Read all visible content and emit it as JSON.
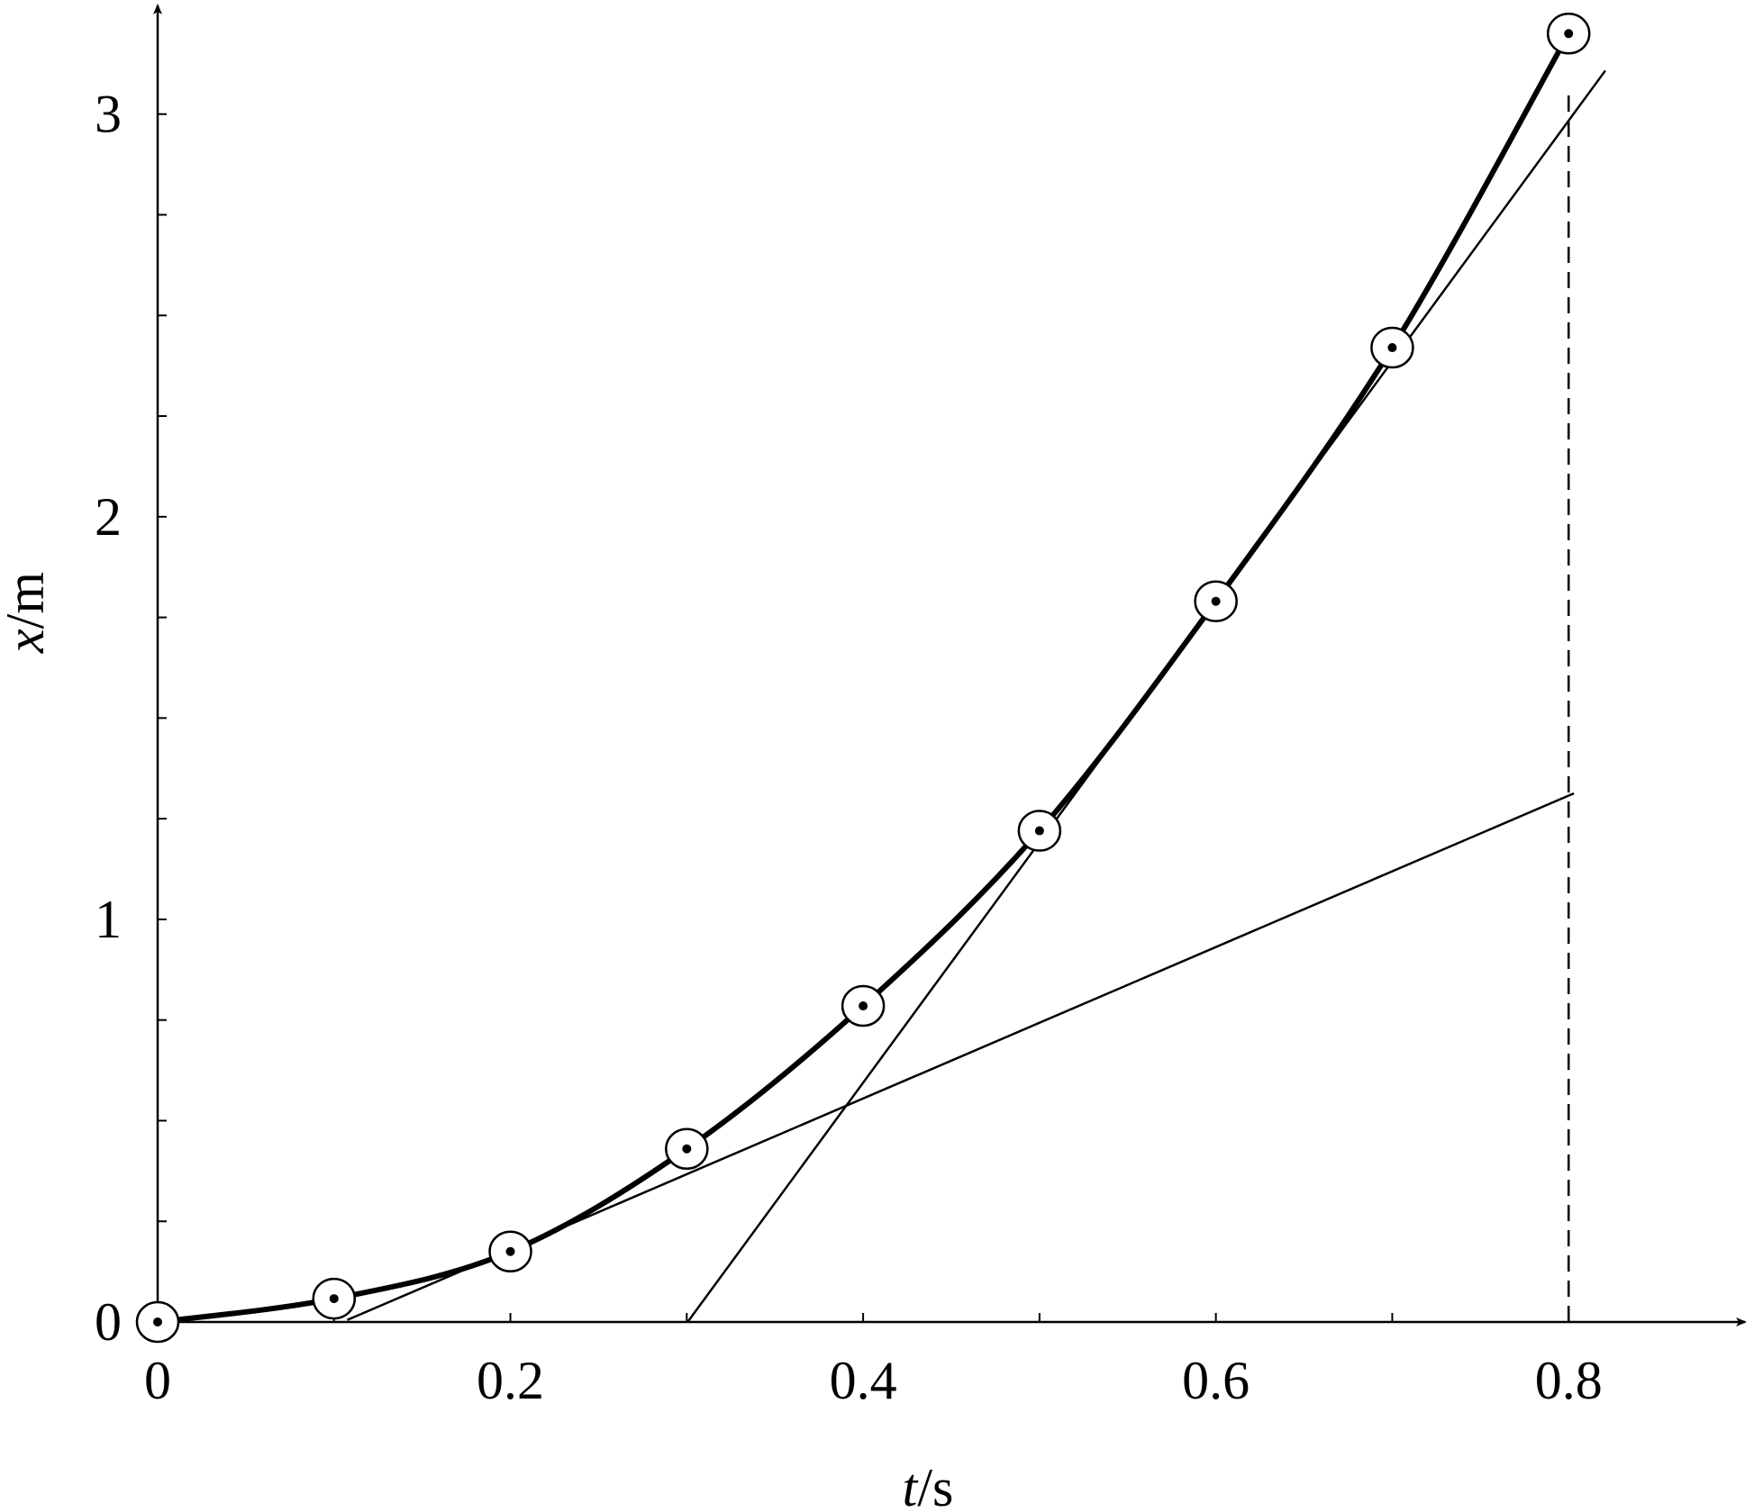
{
  "chart_data": {
    "type": "scatter",
    "x_label": {
      "symbol": "t",
      "unit": "/s"
    },
    "y_label": {
      "symbol": "x",
      "unit": "/m"
    },
    "x": [
      0,
      0.1,
      0.2,
      0.3,
      0.4,
      0.5,
      0.6,
      0.7,
      0.8
    ],
    "values": [
      0,
      0.058,
      0.175,
      0.43,
      0.785,
      1.22,
      1.79,
      2.42,
      3.2
    ],
    "color": "#000000",
    "xlim": [
      0,
      0.9
    ],
    "ylim": [
      0,
      3.27
    ],
    "xticks": [
      0,
      0.2,
      0.4,
      0.6,
      0.8
    ],
    "xminor": [
      0.1,
      0.3,
      0.5,
      0.7
    ],
    "yticks": [
      0,
      1,
      2,
      3
    ],
    "yminor": [
      0.25,
      0.5,
      0.75,
      1.25,
      1.5,
      1.75,
      2.25,
      2.5,
      2.75
    ],
    "lines": [
      {
        "x": [
          0.1075,
          0.803
        ],
        "y": [
          0.005,
          1.313
        ],
        "dashed": false
      },
      {
        "x": [
          0.3005,
          0.8208
        ],
        "y": [
          0,
          3.108
        ],
        "dashed": false
      },
      {
        "x": [
          0.8,
          0.8
        ],
        "y": [
          0,
          3.05
        ],
        "dashed": true
      }
    ]
  }
}
